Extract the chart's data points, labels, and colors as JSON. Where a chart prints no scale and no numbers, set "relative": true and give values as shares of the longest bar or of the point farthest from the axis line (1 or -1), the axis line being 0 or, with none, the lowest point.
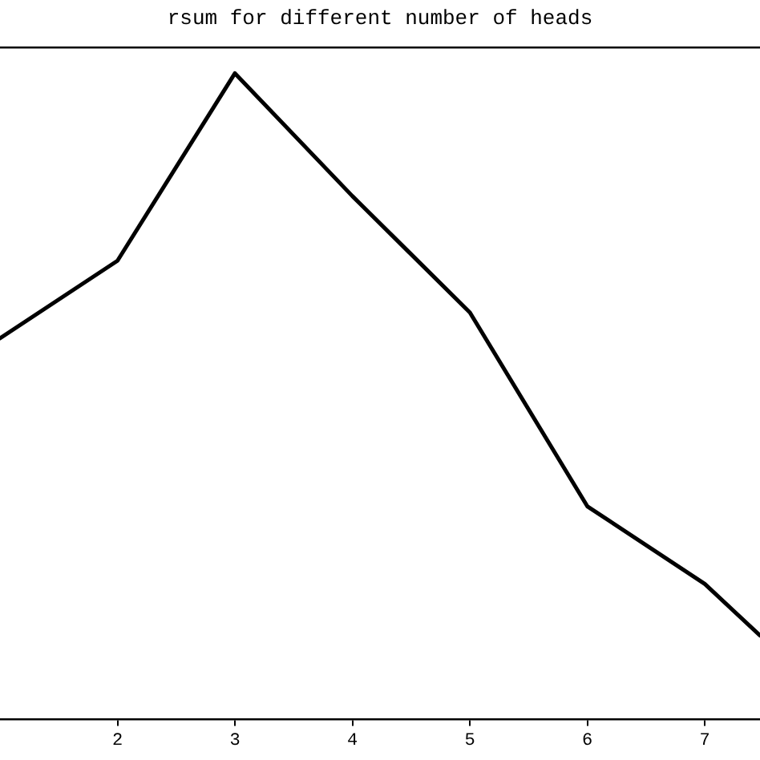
{
  "chart_data": {
    "type": "line",
    "title": "rsum for different number of heads",
    "relative": true,
    "x": [
      1,
      2,
      3,
      4,
      5,
      6,
      7,
      7.47
    ],
    "series": [
      {
        "color": "#000000",
        "values": [
          0.59,
          0.71,
          1,
          0.81,
          0.63,
          0.33,
          0.21,
          0.13
        ]
      }
    ],
    "xlim": [
      1,
      7.47
    ],
    "xticks": [
      2,
      3,
      4,
      5,
      6,
      7
    ],
    "tick_labels": "x",
    "grid": false,
    "legend": false,
    "marker": "none",
    "line_style": "solid"
  }
}
